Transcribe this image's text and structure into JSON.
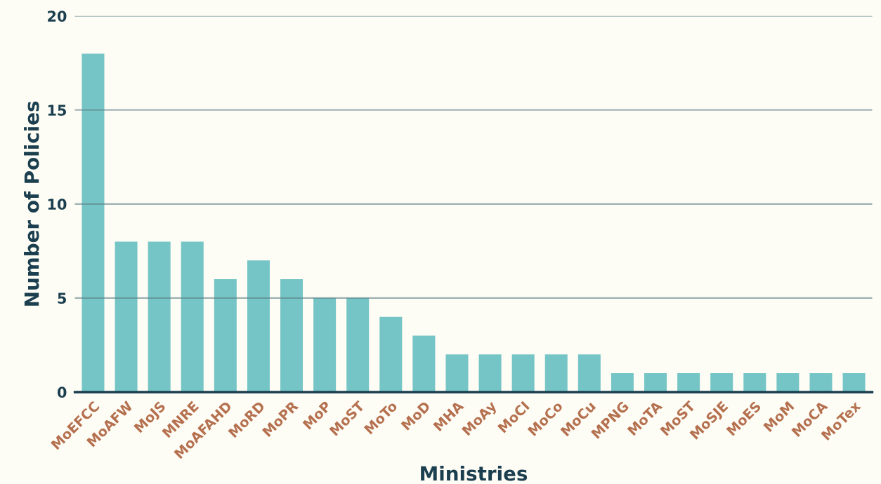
{
  "chart_data": {
    "type": "bar",
    "xlabel": "Ministries",
    "ylabel": "Number of Policies",
    "categories": [
      "MoEFCC",
      "MoAFW",
      "MoJS",
      "MNRE",
      "MoAFAHD",
      "MoRD",
      "MoPR",
      "MoP",
      "MoST",
      "MoTo",
      "MoD",
      "MHA",
      "MoAy",
      "MoCI",
      "MoCo",
      "MoCu",
      "MPNG",
      "MoTA",
      "MoST",
      "MoSJE",
      "MoES",
      "MoM",
      "MoCA",
      "MoTex"
    ],
    "values": [
      18,
      8,
      8,
      8,
      6,
      7,
      6,
      5,
      5,
      4,
      3,
      2,
      2,
      2,
      2,
      2,
      1,
      1,
      1,
      1,
      1,
      1,
      1,
      1
    ],
    "color": "#76c5c6",
    "ylim": [
      0,
      20
    ],
    "yticks": [
      0,
      5,
      10,
      15,
      20
    ],
    "grid": "y",
    "legend": false
  }
}
